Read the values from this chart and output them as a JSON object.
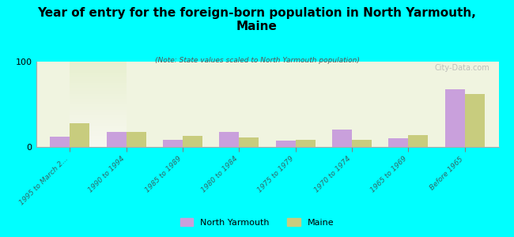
{
  "title": "Year of entry for the foreign-born population in North Yarmouth,\nMaine",
  "subtitle": "(Note: State values scaled to North Yarmouth population)",
  "categories": [
    "1995 to March 2...",
    "1990 to 1994",
    "1985 to 1989",
    "1980 to 1984",
    "1975 to 1979",
    "1970 to 1974",
    "1965 to 1969",
    "Before 1965"
  ],
  "north_yarmouth": [
    12,
    18,
    8,
    18,
    7,
    20,
    10,
    68
  ],
  "maine": [
    28,
    18,
    13,
    11,
    8,
    8,
    14,
    62
  ],
  "ny_color": "#c9a0dc",
  "maine_color": "#c8cc7e",
  "bg_color": "#00ffff",
  "plot_bg_top": "#e8f0d0",
  "plot_bg_bottom": "#f8f8f0",
  "ylim": [
    0,
    100
  ],
  "yticks": [
    0,
    100
  ],
  "bar_width": 0.35,
  "watermark": "City-Data.com",
  "legend_ny": "North Yarmouth",
  "legend_maine": "Maine"
}
